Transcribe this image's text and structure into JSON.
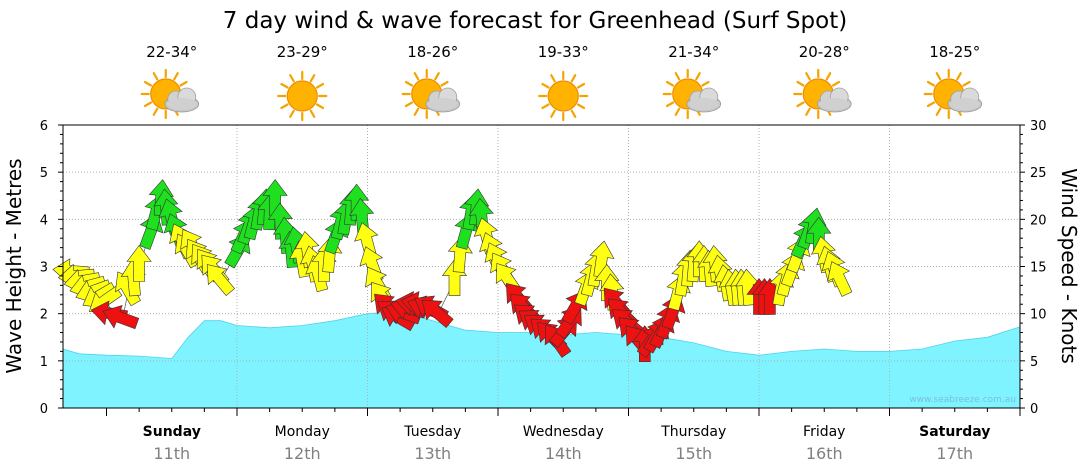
{
  "title": "7 day wind & wave forecast for Greenhead (Surf Spot)",
  "watermark": "www.seabreeze.com.au",
  "colors": {
    "wave_fill": "#7ff3ff",
    "wave_stroke": "#4fd3e8",
    "wind_green": "#1fe01f",
    "wind_yellow": "#ffff11",
    "wind_red": "#ee1111",
    "grid": "#b0b0b0",
    "date_text": "#808080"
  },
  "days": [
    {
      "name": "Sunday",
      "date": "11th",
      "bold": true,
      "temp": "22-34°",
      "icon": "partly-cloudy-icon"
    },
    {
      "name": "Monday",
      "date": "12th",
      "bold": false,
      "temp": "23-29°",
      "icon": "sunny-icon"
    },
    {
      "name": "Tuesday",
      "date": "13th",
      "bold": false,
      "temp": "18-26°",
      "icon": "partly-cloudy-icon"
    },
    {
      "name": "Wednesday",
      "date": "14th",
      "bold": false,
      "temp": "19-33°",
      "icon": "sunny-icon"
    },
    {
      "name": "Thursday",
      "date": "15th",
      "bold": false,
      "temp": "21-34°",
      "icon": "partly-cloudy-icon"
    },
    {
      "name": "Friday",
      "date": "16th",
      "bold": false,
      "temp": "20-28°",
      "icon": "partly-cloudy-icon"
    },
    {
      "name": "Saturday",
      "date": "17th",
      "bold": true,
      "temp": "18-25°",
      "icon": "partly-cloudy-icon"
    }
  ],
  "chart_data": {
    "type": "area",
    "title": "7 day wind & wave forecast for Greenhead (Surf Spot)",
    "xlabel": "",
    "x_unit": "hours from start of Sunday",
    "left_axis": {
      "label": "Wave Height - Metres",
      "range": [
        0,
        6
      ],
      "ticks": [
        "0",
        "1",
        "2",
        "3",
        "4",
        "5",
        "6"
      ]
    },
    "right_axis": {
      "label": "Wind Speed - Knots",
      "range": [
        0,
        30
      ],
      "ticks": [
        "0",
        "5",
        "10",
        "15",
        "20",
        "25",
        "30"
      ]
    },
    "x_range": [
      -8,
      168
    ],
    "series": [
      {
        "name": "Wave Height",
        "axis": "left",
        "x": [
          -8,
          -5,
          0,
          6,
          12,
          15,
          18,
          21,
          24,
          30,
          36,
          42,
          48,
          54,
          60,
          66,
          72,
          78,
          84,
          90,
          96,
          102,
          108,
          114,
          120,
          126,
          132,
          138,
          144,
          150,
          156,
          162,
          168
        ],
        "values": [
          1.25,
          1.15,
          1.12,
          1.1,
          1.05,
          1.5,
          1.85,
          1.85,
          1.75,
          1.7,
          1.75,
          1.85,
          2.0,
          2.05,
          1.85,
          1.65,
          1.6,
          1.6,
          1.55,
          1.6,
          1.55,
          1.5,
          1.38,
          1.2,
          1.12,
          1.2,
          1.25,
          1.2,
          1.2,
          1.25,
          1.42,
          1.5,
          1.72
        ]
      },
      {
        "name": "Wind Speed",
        "axis": "right",
        "points": [
          [
            -6,
            14.5,
            95,
            "yellow"
          ],
          [
            -5,
            14.0,
            85,
            "yellow"
          ],
          [
            -4,
            13.5,
            80,
            "yellow"
          ],
          [
            -3,
            13.0,
            75,
            "yellow"
          ],
          [
            -2,
            12.5,
            70,
            "yellow"
          ],
          [
            -1,
            12.0,
            60,
            "yellow"
          ],
          [
            0,
            11.5,
            55,
            "yellow"
          ],
          [
            1,
            10.0,
            100,
            "red"
          ],
          [
            3,
            9.5,
            110,
            "red"
          ],
          [
            4,
            12.5,
            150,
            "yellow"
          ],
          [
            5,
            13.5,
            175,
            "yellow"
          ],
          [
            6,
            15.0,
            180,
            "yellow"
          ],
          [
            8,
            18.5,
            200,
            "green"
          ],
          [
            9,
            20.5,
            195,
            "green"
          ],
          [
            10,
            22.0,
            185,
            "green"
          ],
          [
            11,
            21.0,
            175,
            "green"
          ],
          [
            12,
            20.0,
            165,
            "green"
          ],
          [
            13,
            18.5,
            160,
            "green"
          ],
          [
            14,
            17.5,
            155,
            "yellow"
          ],
          [
            15,
            16.5,
            150,
            "yellow"
          ],
          [
            16,
            17.0,
            150,
            "yellow"
          ],
          [
            17,
            16.0,
            148,
            "yellow"
          ],
          [
            18,
            15.5,
            146,
            "yellow"
          ],
          [
            19,
            15.0,
            145,
            "yellow"
          ],
          [
            20,
            14.5,
            140,
            "yellow"
          ],
          [
            21,
            13.5,
            140,
            "yellow"
          ],
          [
            24,
            16.5,
            210,
            "green"
          ],
          [
            25,
            18.0,
            205,
            "green"
          ],
          [
            26,
            19.0,
            200,
            "green"
          ],
          [
            27,
            19.5,
            195,
            "green"
          ],
          [
            28,
            20.5,
            190,
            "green"
          ],
          [
            29,
            21.0,
            186,
            "green"
          ],
          [
            30,
            20.5,
            182,
            "green"
          ],
          [
            31,
            22.0,
            180,
            "green"
          ],
          [
            32,
            19.5,
            178,
            "green"
          ],
          [
            33,
            18.0,
            175,
            "green"
          ],
          [
            34,
            16.5,
            175,
            "green"
          ],
          [
            35,
            17.0,
            170,
            "green"
          ],
          [
            36,
            15.5,
            170,
            "yellow"
          ],
          [
            37,
            16.5,
            172,
            "yellow"
          ],
          [
            38,
            15.0,
            168,
            "yellow"
          ],
          [
            39,
            14.0,
            165,
            "yellow"
          ],
          [
            40,
            15.0,
            180,
            "yellow"
          ],
          [
            41,
            16.0,
            185,
            "yellow"
          ],
          [
            42,
            18.0,
            200,
            "green"
          ],
          [
            43,
            19.5,
            195,
            "green"
          ],
          [
            44,
            20.0,
            190,
            "green"
          ],
          [
            45,
            21.0,
            185,
            "green"
          ],
          [
            46,
            21.5,
            180,
            "green"
          ],
          [
            47,
            20.0,
            175,
            "green"
          ],
          [
            48,
            17.5,
            165,
            "yellow"
          ],
          [
            49,
            15.0,
            160,
            "yellow"
          ],
          [
            50,
            13.0,
            150,
            "yellow"
          ],
          [
            51,
            11.5,
            145,
            "yellow"
          ],
          [
            52,
            10.5,
            135,
            "red"
          ],
          [
            53,
            10.0,
            125,
            "red"
          ],
          [
            54,
            9.5,
            120,
            "red"
          ],
          [
            55,
            10.0,
            110,
            "red"
          ],
          [
            56,
            10.5,
            105,
            "red"
          ],
          [
            57,
            11.0,
            100,
            "red"
          ],
          [
            58,
            11.0,
            100,
            "red"
          ],
          [
            59,
            10.5,
            110,
            "red"
          ],
          [
            60,
            10.5,
            120,
            "red"
          ],
          [
            61,
            10.0,
            130,
            "red"
          ],
          [
            64,
            13.5,
            180,
            "yellow"
          ],
          [
            65,
            16.0,
            185,
            "yellow"
          ],
          [
            66,
            18.5,
            195,
            "green"
          ],
          [
            67,
            20.5,
            190,
            "green"
          ],
          [
            68,
            21.0,
            185,
            "green"
          ],
          [
            69,
            20.0,
            175,
            "green"
          ],
          [
            70,
            18.0,
            165,
            "yellow"
          ],
          [
            71,
            16.5,
            160,
            "yellow"
          ],
          [
            72,
            15.5,
            155,
            "yellow"
          ],
          [
            73,
            14.5,
            150,
            "yellow"
          ],
          [
            74,
            13.5,
            145,
            "yellow"
          ],
          [
            76,
            11.5,
            140,
            "red"
          ],
          [
            77,
            10.5,
            135,
            "red"
          ],
          [
            78,
            9.5,
            130,
            "red"
          ],
          [
            79,
            9.0,
            125,
            "red"
          ],
          [
            80,
            8.5,
            125,
            "red"
          ],
          [
            81,
            8.0,
            130,
            "red"
          ],
          [
            82,
            7.5,
            135,
            "red"
          ],
          [
            83,
            7.0,
            145,
            "red"
          ],
          [
            84,
            8.0,
            220,
            "red"
          ],
          [
            85,
            9.0,
            215,
            "red"
          ],
          [
            86,
            10.5,
            210,
            "red"
          ],
          [
            88,
            12.5,
            200,
            "yellow"
          ],
          [
            89,
            13.5,
            195,
            "yellow"
          ],
          [
            90,
            14.5,
            190,
            "yellow"
          ],
          [
            91,
            15.5,
            188,
            "yellow"
          ],
          [
            92,
            13.0,
            180,
            "yellow"
          ],
          [
            93,
            12.0,
            175,
            "yellow"
          ],
          [
            94,
            11.0,
            140,
            "red"
          ],
          [
            95,
            10.0,
            135,
            "red"
          ],
          [
            96,
            9.0,
            130,
            "red"
          ],
          [
            97,
            8.0,
            135,
            "red"
          ],
          [
            98,
            7.0,
            140,
            "red"
          ],
          [
            99,
            6.5,
            180,
            "red"
          ],
          [
            100,
            7.0,
            215,
            "red"
          ],
          [
            101,
            7.5,
            210,
            "red"
          ],
          [
            102,
            8.0,
            205,
            "red"
          ],
          [
            103,
            9.0,
            200,
            "red"
          ],
          [
            104,
            10.0,
            200,
            "red"
          ],
          [
            105,
            12.0,
            195,
            "yellow"
          ],
          [
            106,
            13.5,
            190,
            "yellow"
          ],
          [
            107,
            14.5,
            185,
            "yellow"
          ],
          [
            108,
            15.0,
            185,
            "yellow"
          ],
          [
            109,
            15.5,
            180,
            "yellow"
          ],
          [
            110,
            15.0,
            178,
            "yellow"
          ],
          [
            111,
            14.5,
            175,
            "yellow"
          ],
          [
            112,
            15.0,
            175,
            "yellow"
          ],
          [
            113,
            14.0,
            170,
            "yellow"
          ],
          [
            114,
            13.0,
            170,
            "yellow"
          ],
          [
            115,
            12.5,
            170,
            "yellow"
          ],
          [
            116,
            12.5,
            175,
            "yellow"
          ],
          [
            117,
            12.5,
            175,
            "yellow"
          ],
          [
            118,
            12.5,
            175,
            "yellow"
          ],
          [
            120,
            11.5,
            180,
            "red"
          ],
          [
            121,
            11.5,
            180,
            "red"
          ],
          [
            122,
            11.5,
            180,
            "red"
          ],
          [
            124,
            12.5,
            190,
            "yellow"
          ],
          [
            125,
            13.5,
            195,
            "yellow"
          ],
          [
            126,
            14.5,
            200,
            "yellow"
          ],
          [
            127,
            16.0,
            200,
            "yellow"
          ],
          [
            128,
            17.5,
            205,
            "green"
          ],
          [
            129,
            18.5,
            200,
            "green"
          ],
          [
            130,
            19.0,
            190,
            "green"
          ],
          [
            131,
            18.0,
            180,
            "green"
          ],
          [
            132,
            16.0,
            170,
            "yellow"
          ],
          [
            133,
            15.0,
            165,
            "yellow"
          ],
          [
            134,
            14.5,
            160,
            "yellow"
          ],
          [
            135,
            13.5,
            155,
            "yellow"
          ]
        ]
      }
    ],
    "day_labels": [
      "Sunday",
      "Monday",
      "Tuesday",
      "Wednesday",
      "Thursday",
      "Friday",
      "Saturday"
    ],
    "date_labels": [
      "11th",
      "12th",
      "13th",
      "14th",
      "15th",
      "16th",
      "17th"
    ],
    "temperatures": [
      "22-34°",
      "23-29°",
      "18-26°",
      "19-33°",
      "21-34°",
      "20-28°",
      "18-25°"
    ],
    "grid": true
  }
}
